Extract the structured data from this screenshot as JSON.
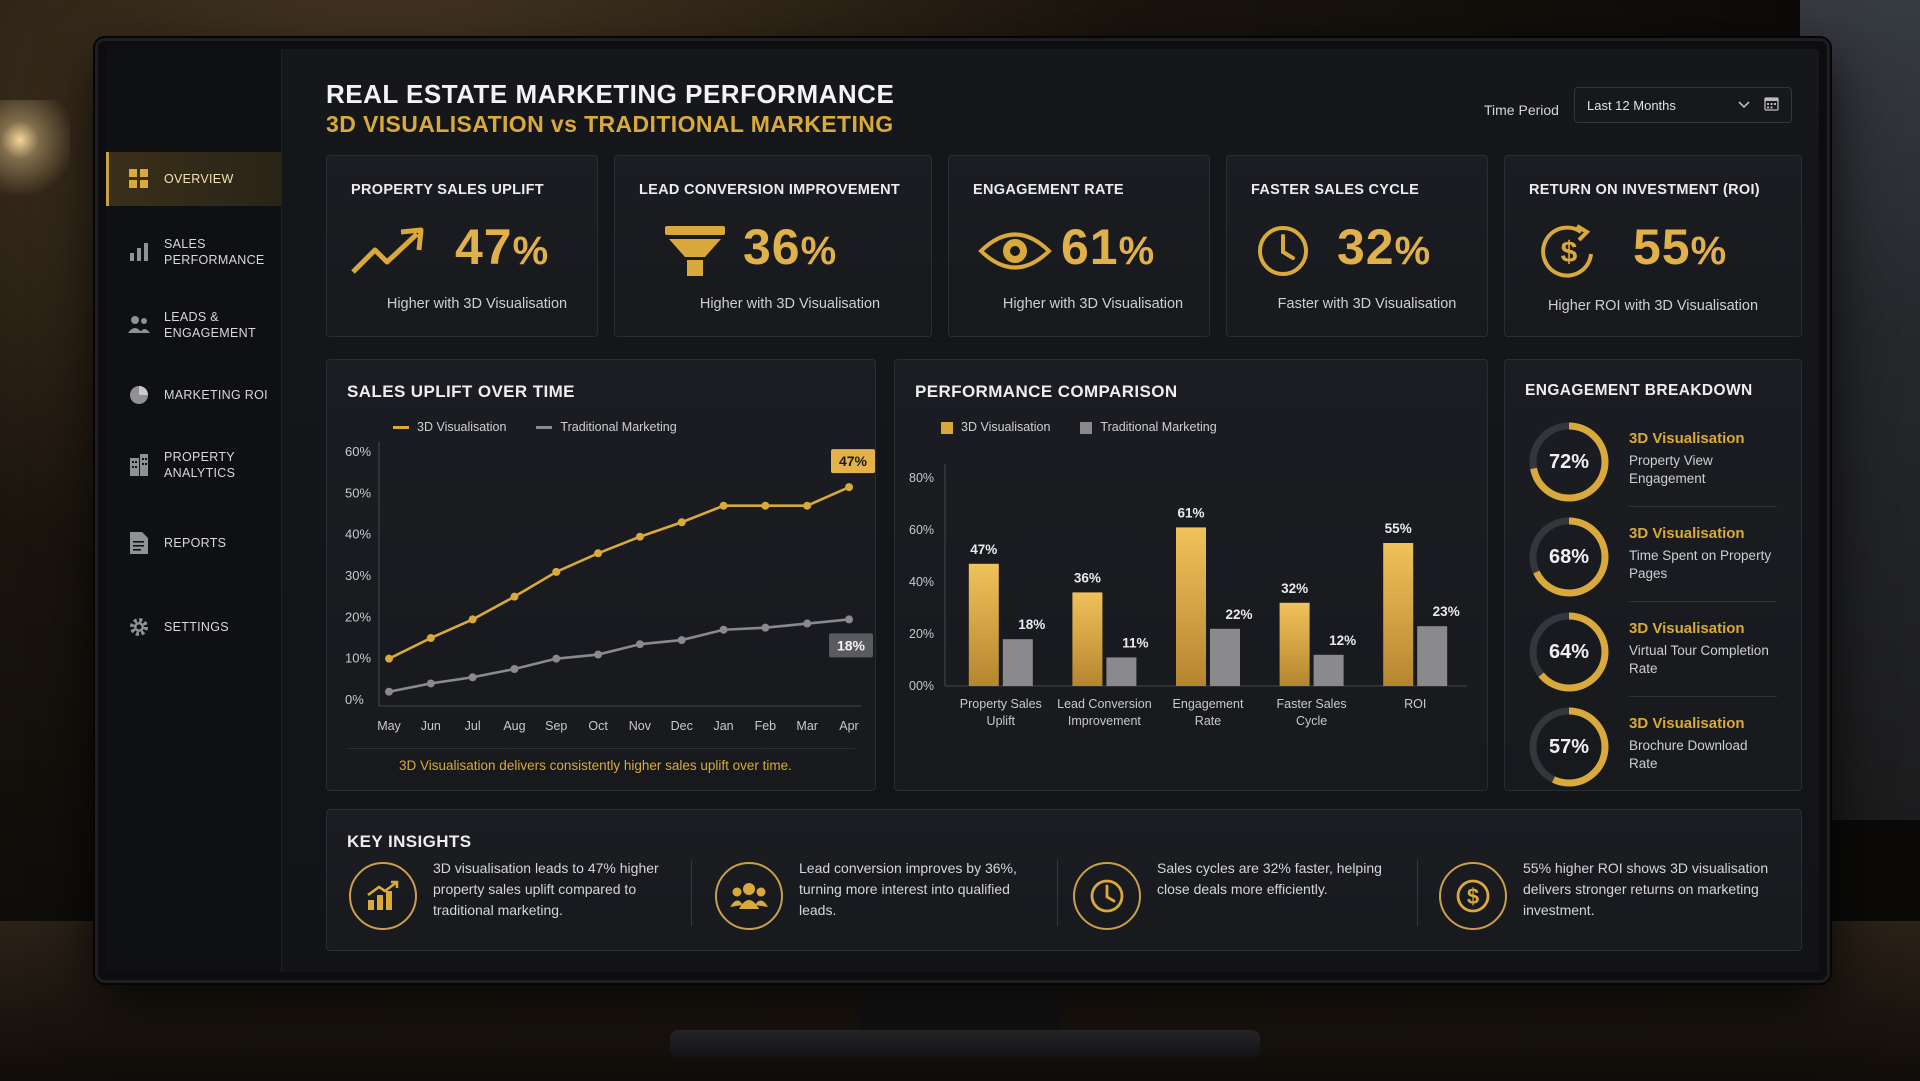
{
  "header": {
    "title": "REAL ESTATE MARKETING PERFORMANCE",
    "subtitle": "3D VISUALISATION vs TRADITIONAL MARKETING",
    "time_period_label": "Time Period",
    "time_period_value": "Last 12 Months"
  },
  "sidebar": {
    "items": [
      {
        "label": "OVERVIEW",
        "icon": "grid-icon",
        "active": true
      },
      {
        "label": "SALES\nPERFORMANCE",
        "icon": "bar-chart-icon"
      },
      {
        "label": "LEADS &\nENGAGEMENT",
        "icon": "users-icon"
      },
      {
        "label": "MARKETING ROI",
        "icon": "pie-chart-icon"
      },
      {
        "label": "PROPERTY\nANALYTICS",
        "icon": "building-icon"
      },
      {
        "label": "REPORTS",
        "icon": "document-icon"
      },
      {
        "label": "SETTINGS",
        "icon": "gear-icon"
      }
    ]
  },
  "kpis": [
    {
      "title": "PROPERTY SALES UPLIFT",
      "value": "47",
      "unit": "%",
      "desc": "Higher with 3D Visualisation",
      "icon": "trend-up-icon"
    },
    {
      "title": "LEAD CONVERSION IMPROVEMENT",
      "value": "36",
      "unit": "%",
      "desc": "Higher with 3D Visualisation",
      "icon": "funnel-icon"
    },
    {
      "title": "ENGAGEMENT RATE",
      "value": "61",
      "unit": "%",
      "desc": "Higher with 3D Visualisation",
      "icon": "eye-icon"
    },
    {
      "title": "FASTER SALES CYCLE",
      "value": "32",
      "unit": "%",
      "desc": "Faster with 3D Visualisation",
      "icon": "clock-icon"
    },
    {
      "title": "RETURN ON INVESTMENT (ROI)",
      "value": "55",
      "unit": "%",
      "desc": "Higher ROI with 3D Visualisation",
      "icon": "dollar-cycle-icon"
    }
  ],
  "sales_uplift": {
    "title": "SALES UPLIFT OVER TIME",
    "legend": [
      "3D Visualisation",
      "Traditional Marketing"
    ],
    "caption": "3D Visualisation delivers consistently higher sales uplift over time.",
    "callout_3d": "47%",
    "callout_trad": "18%"
  },
  "performance": {
    "title": "PERFORMANCE COMPARISON",
    "legend": [
      "3D Visualisation",
      "Traditional Marketing"
    ]
  },
  "engagement": {
    "title": "ENGAGEMENT BREAKDOWN",
    "rows": [
      {
        "value": 72,
        "label": "72%",
        "name": "3D Visualisation",
        "desc": "Property View Engagement"
      },
      {
        "value": 68,
        "label": "68%",
        "name": "3D Visualisation",
        "desc": "Time Spent on Property Pages"
      },
      {
        "value": 64,
        "label": "64%",
        "name": "3D Visualisation",
        "desc": "Virtual Tour Completion Rate"
      },
      {
        "value": 57,
        "label": "57%",
        "name": "3D Visualisation",
        "desc": "Brochure Download Rate"
      }
    ]
  },
  "insights": {
    "title": "KEY INSIGHTS",
    "items": [
      {
        "icon": "growth-chart-icon",
        "text": "3D visualisation leads to 47% higher property sales uplift compared to traditional marketing."
      },
      {
        "icon": "group-icon",
        "text": "Lead conversion improves by 36%, turning more interest into qualified leads."
      },
      {
        "icon": "clock-icon",
        "text": "Sales cycles are 32% faster, helping close deals more efficiently."
      },
      {
        "icon": "dollar-icon",
        "text": "55% higher ROI shows 3D visualisation delivers stronger returns on marketing investment."
      }
    ]
  },
  "colors": {
    "accent": "#d9a93c",
    "trad": "#8a8a8d"
  },
  "chart_data": [
    {
      "type": "line",
      "title": "SALES UPLIFT OVER TIME",
      "categories": [
        "May",
        "Jun",
        "Jul",
        "Aug",
        "Sep",
        "Oct",
        "Nov",
        "Dec",
        "Jan",
        "Feb",
        "Mar",
        "Apr"
      ],
      "series": [
        {
          "name": "3D Visualisation",
          "values": [
            10,
            15,
            19.5,
            25,
            31,
            35.5,
            39.5,
            43,
            47,
            47,
            47,
            51.5
          ]
        },
        {
          "name": "Traditional Marketing",
          "values": [
            2,
            4,
            5.5,
            7.5,
            10,
            11,
            13.5,
            14.5,
            17,
            17.5,
            18.5,
            19.5
          ]
        }
      ],
      "yticks": [
        "0%",
        "10%",
        "20%",
        "30%",
        "40%",
        "50%",
        "60%"
      ],
      "ylim": [
        0,
        60
      ]
    },
    {
      "type": "bar",
      "title": "PERFORMANCE COMPARISON",
      "categories": [
        "Property Sales\nUplift",
        "Lead Conversion\nImprovement",
        "Engagement\nRate",
        "Faster Sales\nCycle",
        "ROI"
      ],
      "series": [
        {
          "name": "3D Visualisation",
          "values": [
            47,
            36,
            61,
            32,
            55
          ],
          "labels": [
            "47%",
            "36%",
            "61%",
            "32%",
            "55%"
          ]
        },
        {
          "name": "Traditional Marketing",
          "values": [
            18,
            11,
            22,
            12,
            23
          ],
          "labels": [
            "18%",
            "11%",
            "22%",
            "12%",
            "23%"
          ]
        }
      ],
      "yticks": [
        "00%",
        "20%",
        "40%",
        "60%",
        "80%"
      ],
      "ylim": [
        0,
        80
      ]
    }
  ]
}
